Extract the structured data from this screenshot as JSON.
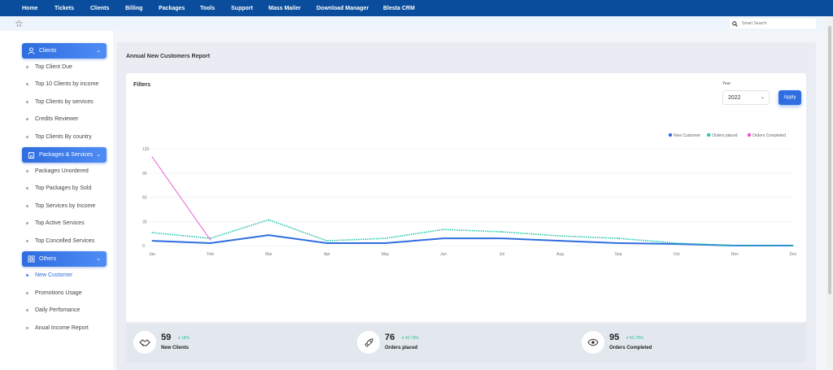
{
  "nav": {
    "items": [
      "Home",
      "Tickets",
      "Clients",
      "Billing",
      "Packages",
      "Tools",
      "Support",
      "Mass Mailer",
      "Download Manager",
      "Blesta CRM"
    ]
  },
  "search": {
    "placeholder": "Smart Search"
  },
  "sidebar": {
    "sections": [
      {
        "label": "Clients",
        "icon": "user-icon",
        "items": [
          "Top Client Due",
          "Top 10 Clients by income",
          "Top Clients by services",
          "Credits Reviewer",
          "Top Clients By country"
        ]
      },
      {
        "label": "Packages & Services",
        "icon": "building-icon",
        "items": [
          "Packages Unordered",
          "Top Packages by Sold",
          "Top Services by Income",
          "Top Active Services",
          "Top Concelled Services"
        ]
      },
      {
        "label": "Others",
        "icon": "grid-icon",
        "items": [
          "New Customer",
          "Promotions Usage",
          "Daily Perfomance",
          "Anual Income Report"
        ]
      }
    ],
    "active_item": "New Customer"
  },
  "main": {
    "title": "Annual New Customers Report",
    "filters_title": "Filters",
    "year_label": "Year",
    "year_value": "2022",
    "apply_label": "Apply"
  },
  "chart_data": {
    "type": "line",
    "x": [
      "Jan",
      "Feb",
      "Mar",
      "Apr",
      "May",
      "Jun",
      "Jul",
      "Aug",
      "Sep",
      "Oct",
      "Nov",
      "Dec"
    ],
    "y_ticks": [
      0,
      30,
      60,
      90,
      120
    ],
    "ylim": [
      0,
      120
    ],
    "grid": true,
    "legend_position": "top-right",
    "series": [
      {
        "name": "New Customer",
        "color": "#2f6de0",
        "style": "solid",
        "values": [
          6,
          3,
          13,
          3,
          3,
          9,
          9,
          6,
          3,
          2,
          0,
          0
        ]
      },
      {
        "name": "Orders placed",
        "color": "#26c6ac",
        "style": "dotted",
        "values": [
          16,
          9,
          32,
          6,
          9,
          20,
          17,
          12,
          9,
          3,
          0,
          0
        ]
      },
      {
        "name": "Orders Completed",
        "color": "#e64fcf",
        "style": "solid",
        "values": [
          110,
          7,
          null,
          null,
          null,
          null,
          null,
          null,
          null,
          null,
          null,
          null
        ]
      }
    ]
  },
  "stats": [
    {
      "value": "59",
      "change": "18%",
      "label": "New Clients",
      "icon": "handshake-icon"
    },
    {
      "value": "76",
      "change": "40.74%",
      "label": "Orders placed",
      "icon": "rocket-icon"
    },
    {
      "value": "95",
      "change": "50.79%",
      "label": "Orders Completed",
      "icon": "eye-icon"
    }
  ],
  "colors": {
    "nav_bg": "#0a4d9c",
    "accent": "#2f6de0",
    "positive": "#2fbf8f"
  }
}
